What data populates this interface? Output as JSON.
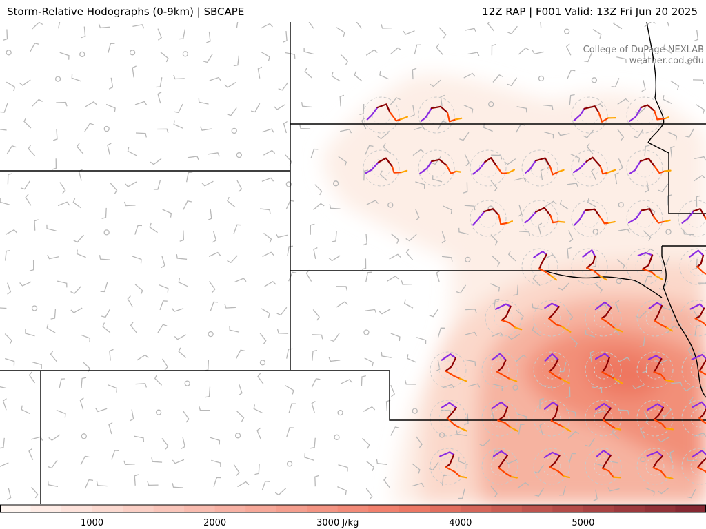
{
  "header": {
    "title": "Storm-Relative Hodographs (0-9km) | SBCAPE",
    "valid": "12Z RAP | F001 Valid: 13Z Fri Jun 20 2025"
  },
  "credit": {
    "line1": "College of DuPage NEXLAB",
    "line2": "weather.cod.edu"
  },
  "colorbar": {
    "ticks": [
      {
        "value": 1000,
        "label": "1000"
      },
      {
        "value": 2000,
        "label": "2000"
      },
      {
        "value": 3000,
        "label": "3000 J/kg"
      },
      {
        "value": 4000,
        "label": "4000"
      },
      {
        "value": 5000,
        "label": "5000"
      }
    ],
    "range": [
      250,
      6000
    ],
    "step": 250,
    "colors": {
      "low": "#fff6f1",
      "mid": "#f07a66",
      "high": "#7a1f2c"
    }
  },
  "legend_colors": {
    "hodo_0_1km": "#8a2be2",
    "hodo_1_3km": "#8b0000",
    "hodo_3_6km": "#ff4500",
    "hodo_6_9km": "#ffa500",
    "barb": "#b8b8b8",
    "state_border": "#000000"
  }
}
